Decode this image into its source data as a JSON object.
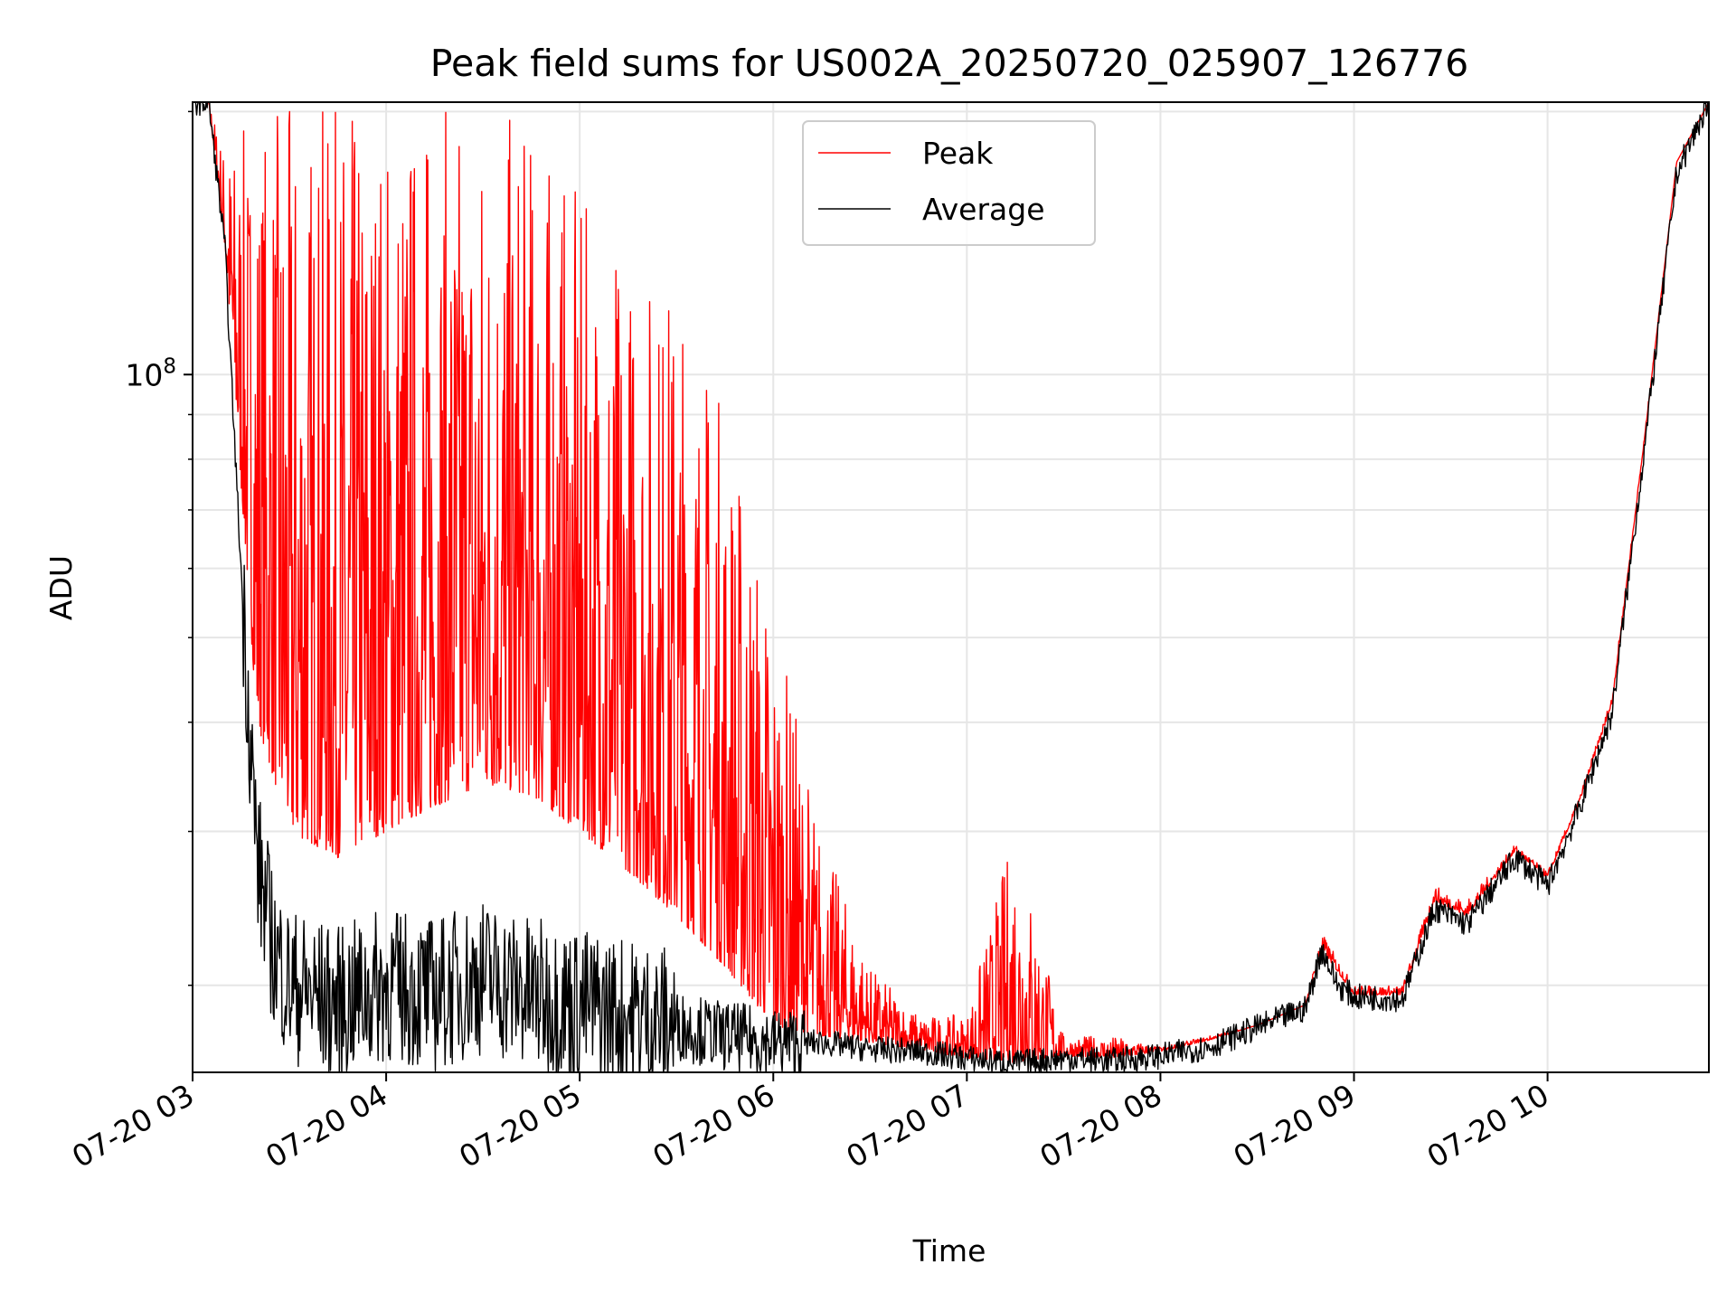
{
  "chart_data": {
    "type": "line",
    "title": "Peak field sums for US002A_20250720_025907_126776",
    "xlabel": "Time",
    "ylabel": "ADU",
    "yscale": "log",
    "grid": true,
    "legend_position": "top-center",
    "xlim": [
      "07-20 03:00",
      "07-20 10:50"
    ],
    "ylim": [
      15900000,
      205000000
    ],
    "x_ticks": [
      "07-20 03",
      "07-20 04",
      "07-20 05",
      "07-20 06",
      "07-20 07",
      "07-20 08",
      "07-20 09",
      "07-20 10"
    ],
    "y_ticks": [
      {
        "value": 100000000,
        "base": "10",
        "exp": "8"
      }
    ],
    "series": [
      {
        "name": "Peak",
        "color": "#ff0000",
        "note": "highly noisy in 03:15-06:30; spikes reach the top of the axis",
        "x": [
          "07-20 03:00",
          "07-20 03:05",
          "07-20 03:10",
          "07-20 03:15",
          "07-20 03:20",
          "07-20 03:30",
          "07-20 03:45",
          "07-20 04:00",
          "07-20 04:15",
          "07-20 04:30",
          "07-20 04:45",
          "07-20 05:00",
          "07-20 05:15",
          "07-20 05:30",
          "07-20 05:45",
          "07-20 06:00",
          "07-20 06:15",
          "07-20 06:30",
          "07-20 06:45",
          "07-20 07:00",
          "07-20 07:15",
          "07-20 07:30",
          "07-20 07:45",
          "07-20 08:00",
          "07-20 08:15",
          "07-20 08:30",
          "07-20 08:45",
          "07-20 08:50",
          "07-20 09:00",
          "07-20 09:15",
          "07-20 09:25",
          "07-20 09:35",
          "07-20 09:50",
          "07-20 10:00",
          "07-20 10:10",
          "07-20 10:20",
          "07-20 10:30",
          "07-20 10:40",
          "07-20 10:50"
        ],
        "upper": [
          205000000,
          205000000,
          180000000,
          190000000,
          200000000,
          205000000,
          205000000,
          205000000,
          205000000,
          205000000,
          195000000,
          160000000,
          140000000,
          130000000,
          95000000,
          55000000,
          30000000,
          21000000,
          18500000,
          18500000,
          31000000,
          17500000,
          17500000,
          17000000,
          17500000,
          18000000,
          19000000,
          23000000,
          20000000,
          20000000,
          26000000,
          25000000,
          29000000,
          27000000,
          33000000,
          43000000,
          85000000,
          175000000,
          205000000
        ],
        "lower": [
          205000000,
          205000000,
          140000000,
          75000000,
          40000000,
          30000000,
          28000000,
          30000000,
          32000000,
          34000000,
          33000000,
          30000000,
          27000000,
          24000000,
          21000000,
          18000000,
          17500000,
          17200000,
          16900000,
          16500000,
          16300000,
          16600000,
          16500000,
          16800000,
          17300000,
          18000000,
          19000000,
          22000000,
          19500000,
          19500000,
          25000000,
          24000000,
          28500000,
          26500000,
          32500000,
          42000000,
          84000000,
          175000000,
          205000000
        ]
      },
      {
        "name": "Average",
        "color": "#000000",
        "x": [
          "07-20 03:00",
          "07-20 03:05",
          "07-20 03:10",
          "07-20 03:15",
          "07-20 03:20",
          "07-20 03:25",
          "07-20 03:30",
          "07-20 03:45",
          "07-20 04:00",
          "07-20 04:15",
          "07-20 04:30",
          "07-20 04:45",
          "07-20 05:00",
          "07-20 05:15",
          "07-20 05:30",
          "07-20 05:45",
          "07-20 06:00",
          "07-20 06:15",
          "07-20 06:30",
          "07-20 06:45",
          "07-20 07:00",
          "07-20 07:15",
          "07-20 07:30",
          "07-20 07:45",
          "07-20 08:00",
          "07-20 08:15",
          "07-20 08:30",
          "07-20 08:45",
          "07-20 08:50",
          "07-20 08:55",
          "07-20 09:00",
          "07-20 09:15",
          "07-20 09:25",
          "07-20 09:35",
          "07-20 09:50",
          "07-20 10:00",
          "07-20 10:10",
          "07-20 10:20",
          "07-20 10:30",
          "07-20 10:40",
          "07-20 10:50"
        ],
        "y": [
          205000000,
          205000000,
          140000000,
          60000000,
          28000000,
          22000000,
          20000000,
          19000000,
          20000000,
          19500000,
          20500000,
          19500000,
          19000000,
          18500000,
          18000000,
          17500000,
          17200000,
          17200000,
          16900000,
          16800000,
          16500000,
          16300000,
          16500000,
          16400000,
          16600000,
          17000000,
          17900000,
          18800000,
          22000000,
          20000000,
          19400000,
          19300000,
          24500000,
          23500000,
          28000000,
          26000000,
          32000000,
          41000000,
          82000000,
          170000000,
          205000000
        ]
      }
    ]
  }
}
